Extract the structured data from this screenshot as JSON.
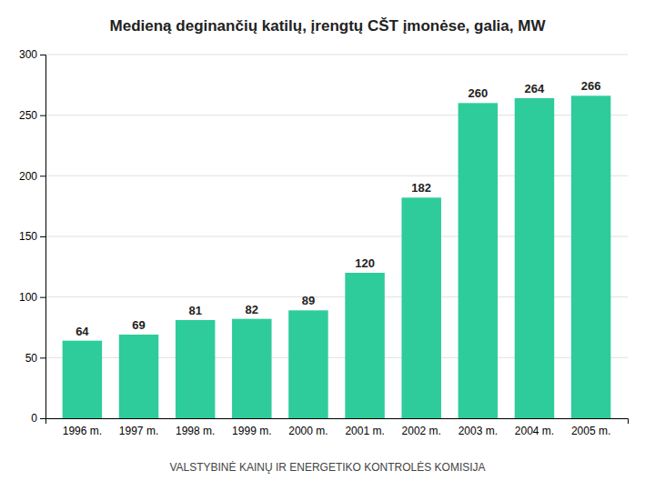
{
  "chart_data": {
    "type": "bar",
    "title": "Medieną deginančių katilų, įrengtų CŠT įmonėse, galia, MW",
    "categories": [
      "1996 m.",
      "1997 m.",
      "1998 m.",
      "1999 m.",
      "2000 m.",
      "2001 m.",
      "2002 m.",
      "2003 m.",
      "2004 m.",
      "2005 m."
    ],
    "values": [
      64,
      69,
      81,
      82,
      89,
      120,
      182,
      260,
      264,
      266
    ],
    "color": "#2ECC9A",
    "ylim": [
      0,
      300
    ],
    "yticks": [
      0,
      50,
      100,
      150,
      200,
      250,
      300
    ],
    "grid": true,
    "data_labels": true,
    "annotations": [
      "VALSTYBINĖ KAINŲ IR ENERGETIKO KONTROLĖS KOMISIJA"
    ]
  }
}
